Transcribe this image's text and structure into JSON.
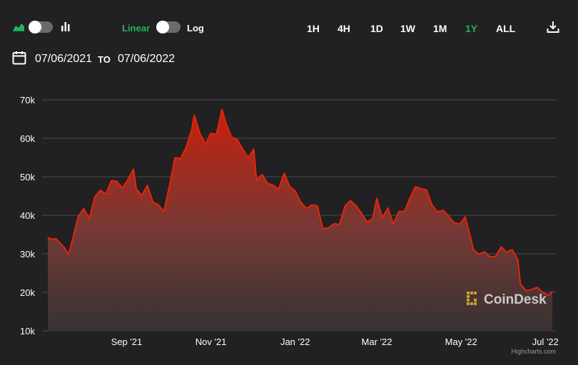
{
  "toolbar": {
    "scale_linear_label": "Linear",
    "scale_log_label": "Log",
    "ranges": [
      "1H",
      "4H",
      "1D",
      "1W",
      "1M",
      "1Y",
      "ALL"
    ],
    "active_range": "1Y",
    "accent_color": "#1fb55a"
  },
  "date_range": {
    "from": "07/06/2021",
    "to_label": "TO",
    "to": "07/06/2022"
  },
  "watermark": "CoinDesk",
  "credits": "Highcharts.com",
  "chart_data": {
    "type": "area",
    "title": "",
    "xlabel": "",
    "ylabel": "",
    "ylim": [
      10000,
      70000
    ],
    "yticks": [
      10000,
      20000,
      30000,
      40000,
      50000,
      60000,
      70000
    ],
    "ytick_labels": [
      "10k",
      "20k",
      "30k",
      "40k",
      "50k",
      "60k",
      "70k"
    ],
    "xticks": [
      "2021-09-01",
      "2021-11-01",
      "2022-01-01",
      "2022-03-01",
      "2022-05-01",
      "2022-07-01"
    ],
    "xtick_labels": [
      "Sep '21",
      "Nov '21",
      "Jan '22",
      "Mar '22",
      "May '22",
      "Jul '22"
    ],
    "xlim": [
      "2021-07-06",
      "2022-07-06"
    ],
    "grid": true,
    "line_color": "#e8230a",
    "series": [
      {
        "x": [
          "2021-07-06",
          "2021-07-09",
          "2021-07-12",
          "2021-07-15",
          "2021-07-18",
          "2021-07-21",
          "2021-07-24",
          "2021-07-28",
          "2021-08-01",
          "2021-08-05",
          "2021-08-09",
          "2021-08-13",
          "2021-08-17",
          "2021-08-21",
          "2021-08-25",
          "2021-08-29",
          "2021-09-02",
          "2021-09-06",
          "2021-09-08",
          "2021-09-12",
          "2021-09-16",
          "2021-09-20",
          "2021-09-24",
          "2021-09-28",
          "2021-10-02",
          "2021-10-06",
          "2021-10-10",
          "2021-10-14",
          "2021-10-18",
          "2021-10-20",
          "2021-10-24",
          "2021-10-28",
          "2021-11-01",
          "2021-11-05",
          "2021-11-09",
          "2021-11-12",
          "2021-11-16",
          "2021-11-20",
          "2021-11-24",
          "2021-11-28",
          "2021-12-02",
          "2021-12-04",
          "2021-12-08",
          "2021-12-12",
          "2021-12-16",
          "2021-12-20",
          "2021-12-24",
          "2021-12-28",
          "2022-01-01",
          "2022-01-05",
          "2022-01-09",
          "2022-01-13",
          "2022-01-17",
          "2022-01-21",
          "2022-01-25",
          "2022-01-29",
          "2022-02-02",
          "2022-02-06",
          "2022-02-10",
          "2022-02-14",
          "2022-02-18",
          "2022-02-22",
          "2022-02-26",
          "2022-03-01",
          "2022-03-05",
          "2022-03-09",
          "2022-03-13",
          "2022-03-17",
          "2022-03-21",
          "2022-03-25",
          "2022-03-29",
          "2022-04-02",
          "2022-04-06",
          "2022-04-10",
          "2022-04-14",
          "2022-04-18",
          "2022-04-22",
          "2022-04-26",
          "2022-04-30",
          "2022-05-04",
          "2022-05-08",
          "2022-05-10",
          "2022-05-14",
          "2022-05-18",
          "2022-05-22",
          "2022-05-26",
          "2022-05-30",
          "2022-06-03",
          "2022-06-07",
          "2022-06-11",
          "2022-06-13",
          "2022-06-17",
          "2022-06-21",
          "2022-06-25",
          "2022-06-29",
          "2022-07-03",
          "2022-07-06"
        ],
        "values": [
          34200,
          33800,
          33900,
          32800,
          31600,
          29800,
          33900,
          39700,
          41800,
          39000,
          44800,
          46500,
          45500,
          49000,
          48800,
          47100,
          49300,
          52000,
          46900,
          45100,
          47800,
          43500,
          42700,
          41000,
          47700,
          55000,
          54700,
          57600,
          62000,
          66000,
          61300,
          58500,
          61300,
          61000,
          67500,
          63800,
          60300,
          59700,
          57200,
          55000,
          57200,
          49100,
          50600,
          48300,
          47800,
          46800,
          50900,
          47500,
          46300,
          43400,
          41800,
          42700,
          42400,
          36500,
          36700,
          37800,
          37600,
          42400,
          43800,
          42500,
          40500,
          38200,
          39100,
          44400,
          39300,
          41900,
          37800,
          41000,
          41000,
          44500,
          47400,
          46900,
          46600,
          42600,
          40900,
          41300,
          39800,
          38100,
          37700,
          39600,
          34000,
          31000,
          29900,
          30500,
          29200,
          29300,
          31800,
          30400,
          31100,
          28500,
          22100,
          20400,
          20700,
          21300,
          20000,
          19200,
          20200
        ]
      }
    ]
  }
}
